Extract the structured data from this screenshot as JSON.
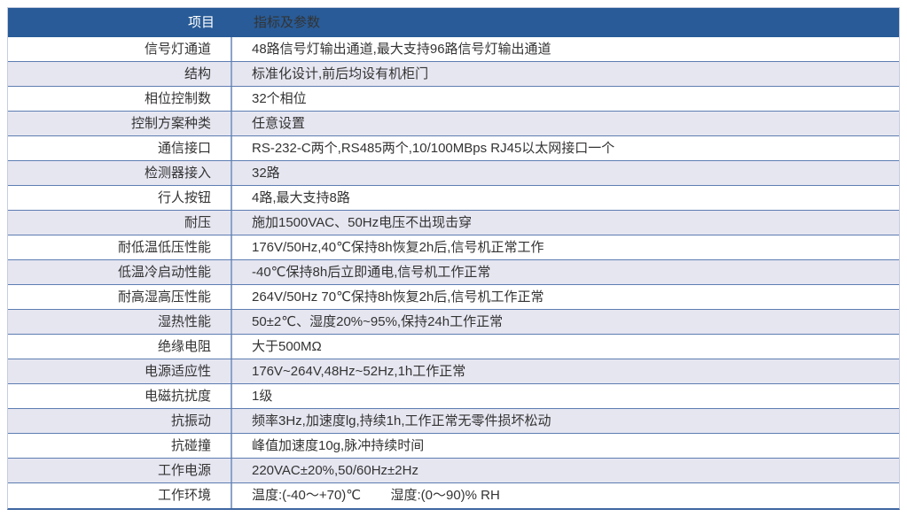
{
  "table": {
    "columns": [
      "项目",
      "指标及参数"
    ],
    "rows": [
      {
        "label": "信号灯通道",
        "value": "48路信号灯输出通道,最大支持96路信号灯输出通道"
      },
      {
        "label": "结构",
        "value": "标准化设计,前后均设有机柜门"
      },
      {
        "label": "相位控制数",
        "value": "32个相位"
      },
      {
        "label": "控制方案种类",
        "value": "任意设置"
      },
      {
        "label": "通信接口",
        "value": "RS-232-C两个,RS485两个,10/100MBps RJ45以太网接口一个"
      },
      {
        "label": "检测器接入",
        "value": "32路"
      },
      {
        "label": "行人按钮",
        "value": "4路,最大支持8路"
      },
      {
        "label": "耐压",
        "value": "施加1500VAC、50Hz电压不出现击穿"
      },
      {
        "label": "耐低温低压性能",
        "value": "176V/50Hz,40℃保持8h恢复2h后,信号机正常工作"
      },
      {
        "label": "低温冷启动性能",
        "value": "-40℃保持8h后立即通电,信号机工作正常"
      },
      {
        "label": "耐高湿高压性能",
        "value": "264V/50Hz 70℃保持8h恢复2h后,信号机工作正常"
      },
      {
        "label": "湿热性能",
        "value": "50±2℃、湿度20%~95%,保持24h工作正常"
      },
      {
        "label": "绝缘电阻",
        "value": "大于500MΩ"
      },
      {
        "label": "电源适应性",
        "value": "176V~264V,48Hz~52Hz,1h工作正常"
      },
      {
        "label": "电磁抗扰度",
        "value": "1级"
      },
      {
        "label": "抗振动",
        "value": "频率3Hz,加速度lg,持续1h,工作正常无零件损坏松动"
      },
      {
        "label": "抗碰撞",
        "value": "峰值加速度10g,脉冲持续时间"
      },
      {
        "label": "工作电源",
        "value": "220VAC±20%,50/60Hz±2Hz"
      },
      {
        "label": "工作环境",
        "value": "温度:(-40～+70)℃        湿度:(0～90)% RH"
      }
    ]
  },
  "colors": {
    "header_bg": "#285b97",
    "header_text": "#ffffff",
    "row_alt_bg": "#e6e6f1",
    "grid_line": "#5d7db1",
    "column_divider": "#8ba3c9",
    "outer_border": "#c6cdde",
    "bottom_border": "#3f66a2",
    "body_text": "#333333"
  }
}
